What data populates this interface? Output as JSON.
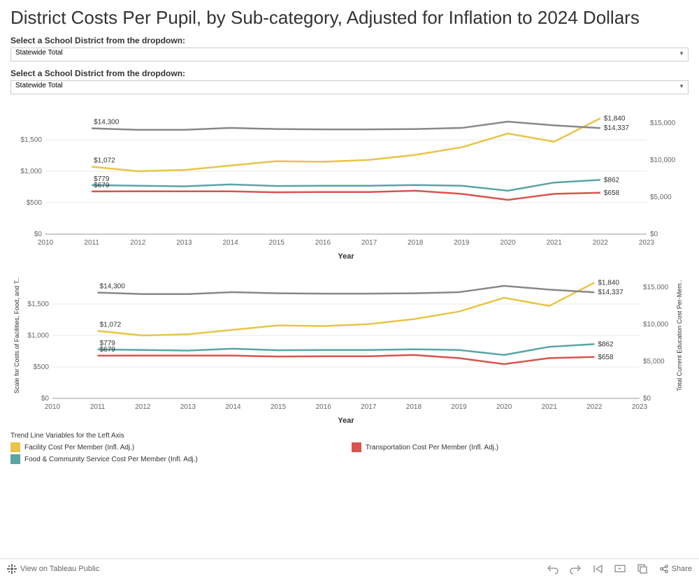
{
  "title": "District Costs Per Pupil, by Sub-category, Adjusted for Inflation to 2024 Dollars",
  "dropdown1": {
    "label": "Select a School District from the dropdown:",
    "value": "Statewide Total"
  },
  "dropdown2": {
    "label": "Select a School District from the dropdown:",
    "value": "Statewide Total"
  },
  "chart": {
    "type": "line",
    "xlabel": "Year",
    "left_axis_title": "Scale for Costs of Facilities, Food, and T..",
    "right_axis_title": "Total Current Education Cost Per-Mem..",
    "years": [
      2010,
      2011,
      2012,
      2013,
      2014,
      2015,
      2016,
      2017,
      2018,
      2019,
      2020,
      2021,
      2022,
      2023
    ],
    "left_ticks": [
      0,
      500,
      1000,
      1500
    ],
    "left_tick_labels": [
      "$0",
      "$500",
      "$1,000",
      "$1,500"
    ],
    "right_ticks": [
      0,
      5000,
      10000,
      15000
    ],
    "right_tick_labels": [
      "$0",
      "$5,000",
      "$10,000",
      "$15,000"
    ],
    "left_ylim": [
      0,
      2000
    ],
    "right_ylim": [
      0,
      17000
    ],
    "series": [
      {
        "name": "facility",
        "color": "#e8c547",
        "axis": "left",
        "data": [
          null,
          1072,
          1000,
          1020,
          1090,
          1160,
          1150,
          1180,
          1260,
          1380,
          1600,
          1470,
          1840,
          null
        ],
        "start_label": "$1,072",
        "end_label": "$1,840"
      },
      {
        "name": "food",
        "color": "#5ba4a4",
        "axis": "left",
        "data": [
          null,
          779,
          770,
          760,
          790,
          765,
          770,
          770,
          780,
          770,
          690,
          820,
          862,
          null
        ],
        "start_label": "$779",
        "end_label": "$862"
      },
      {
        "name": "transportation",
        "color": "#d9534f",
        "axis": "left",
        "data": [
          null,
          679,
          680,
          680,
          680,
          665,
          670,
          670,
          690,
          640,
          545,
          640,
          658,
          null
        ],
        "start_label": "$679",
        "end_label": "$658"
      },
      {
        "name": "total",
        "color": "#888888",
        "axis": "right",
        "data": [
          null,
          14300,
          14100,
          14100,
          14350,
          14200,
          14150,
          14150,
          14200,
          14350,
          15200,
          14700,
          14337,
          null
        ],
        "start_label": "$14,300",
        "end_label": "$14,337"
      }
    ],
    "line_width": 2.5,
    "background_color": "#ffffff",
    "grid_color": "#e8e8e8"
  },
  "legend": {
    "title": "Trend Line Variables for the Left Axis",
    "items": [
      {
        "color": "#e8c547",
        "label": "Facility Cost Per Member (Infl. Adj.)"
      },
      {
        "color": "#5ba4a4",
        "label": "Food & Community Service Cost Per Member (Infl. Adj.)"
      },
      {
        "color": "#d9534f",
        "label": "Transportation Cost Per Member (Infl. Adj.)"
      }
    ]
  },
  "toolbar": {
    "view_label": "View on Tableau Public",
    "share_label": "Share"
  }
}
